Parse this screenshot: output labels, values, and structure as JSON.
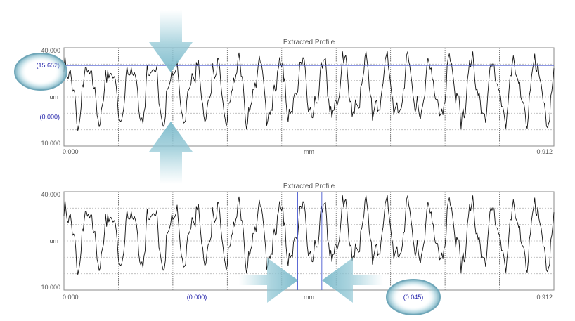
{
  "chart_data": [
    {
      "type": "line",
      "title": "Extracted Profile",
      "xlabel": "mm",
      "ylabel": "um",
      "x_ticks": [
        "0.000",
        "0.912"
      ],
      "y_ticks": [
        "40.000",
        "10.000"
      ],
      "xlim": [
        0,
        0.912
      ],
      "ylim": [
        10,
        40
      ],
      "horizontal_cursors": [
        {
          "label": "(15.652)",
          "value": 34.6
        },
        {
          "label": "(0.000)",
          "value": 18.9
        }
      ],
      "cursor_arrows": "vertical"
    },
    {
      "type": "line",
      "title": "Extracted Profile",
      "xlabel": "mm",
      "ylabel": "um",
      "x_ticks": [
        "0.000",
        "0.912"
      ],
      "y_ticks": [
        "40.000",
        "10.000"
      ],
      "xlim": [
        0,
        0.912
      ],
      "ylim": [
        10,
        40
      ],
      "vertical_cursors": [
        {
          "label": "(0.000)",
          "value": 0.435
        },
        {
          "label": "(0.045)",
          "value": 0.48
        }
      ],
      "cursor_arrows": "horizontal"
    }
  ]
}
